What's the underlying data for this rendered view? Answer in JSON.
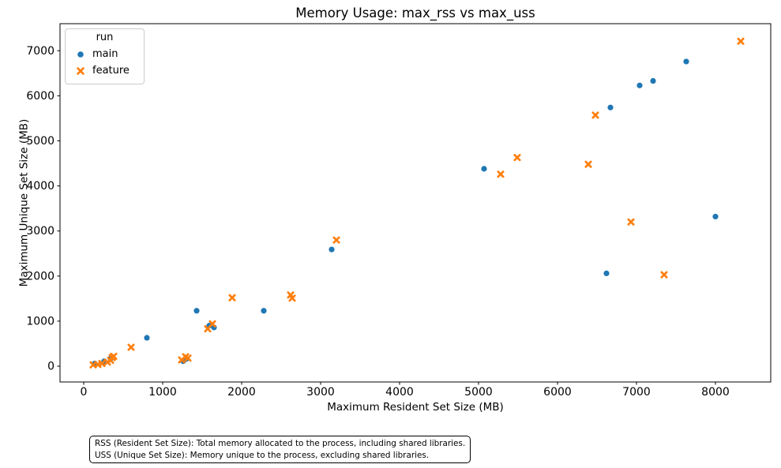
{
  "chart_data": {
    "type": "scatter",
    "title": "Memory Usage: max_rss vs max_uss",
    "xlabel": "Maximum Resident Set Size (MB)",
    "ylabel": "Maximum Unique Set Size (MB)",
    "xlim": [
      -300,
      8700
    ],
    "ylim": [
      -350,
      7600
    ],
    "x_ticks": [
      0,
      1000,
      2000,
      3000,
      4000,
      5000,
      6000,
      7000,
      8000
    ],
    "y_ticks": [
      0,
      1000,
      2000,
      3000,
      4000,
      5000,
      6000,
      7000
    ],
    "grid": false,
    "legend": {
      "title": "run",
      "position": "upper-left"
    },
    "series": [
      {
        "name": "main",
        "marker": "circle",
        "color": "#1f77b4",
        "points": [
          [
            7630,
            6760
          ],
          [
            7210,
            6330
          ],
          [
            7040,
            6230
          ],
          [
            6670,
            5740
          ],
          [
            5070,
            4380
          ],
          [
            8000,
            3320
          ],
          [
            6620,
            2060
          ],
          [
            3140,
            2590
          ],
          [
            1430,
            1230
          ],
          [
            2280,
            1230
          ],
          [
            800,
            630
          ],
          [
            1590,
            900
          ],
          [
            1650,
            860
          ],
          [
            1260,
            110
          ],
          [
            1300,
            160
          ],
          [
            140,
            60
          ],
          [
            260,
            110
          ],
          [
            340,
            170
          ]
        ]
      },
      {
        "name": "feature",
        "marker": "x",
        "color": "#ff7f0e",
        "points": [
          [
            8320,
            7210
          ],
          [
            6480,
            5570
          ],
          [
            5490,
            4630
          ],
          [
            6390,
            4480
          ],
          [
            5280,
            4260
          ],
          [
            6930,
            3200
          ],
          [
            7350,
            2030
          ],
          [
            3200,
            2800
          ],
          [
            1880,
            1520
          ],
          [
            2620,
            1580
          ],
          [
            2640,
            1510
          ],
          [
            1630,
            940
          ],
          [
            1570,
            830
          ],
          [
            1240,
            140
          ],
          [
            1290,
            210
          ],
          [
            1320,
            180
          ],
          [
            600,
            420
          ],
          [
            120,
            30
          ],
          [
            180,
            40
          ],
          [
            230,
            60
          ],
          [
            300,
            90
          ],
          [
            340,
            130
          ],
          [
            360,
            190
          ],
          [
            380,
            220
          ]
        ]
      }
    ]
  },
  "footnote": {
    "line1": "RSS (Resident Set Size): Total memory allocated to the process, including shared libraries.",
    "line2": "USS (Unique Set Size): Memory unique to the process, excluding shared libraries."
  }
}
